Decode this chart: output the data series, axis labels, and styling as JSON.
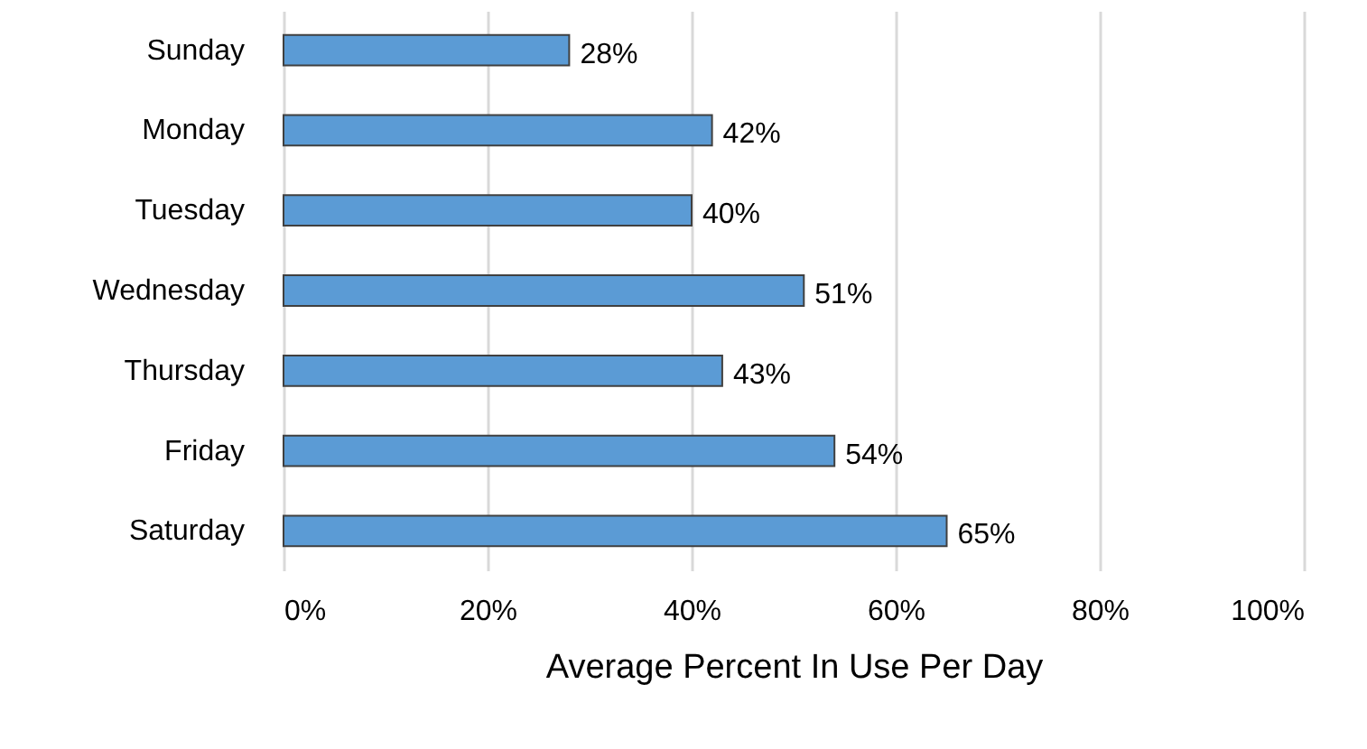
{
  "chart_data": {
    "type": "bar",
    "orientation": "horizontal",
    "categories": [
      "Sunday",
      "Monday",
      "Tuesday",
      "Wednesday",
      "Thursday",
      "Friday",
      "Saturday"
    ],
    "values": [
      28,
      42,
      40,
      51,
      43,
      54,
      65
    ],
    "value_labels": [
      "28%",
      "42%",
      "40%",
      "51%",
      "43%",
      "54%",
      "65%"
    ],
    "color": "#5b9bd5",
    "xlabel": "Average Percent In Use Per Day",
    "xlim": [
      0,
      100
    ],
    "xticks": [
      {
        "value": 0,
        "label": "0%"
      },
      {
        "value": 20,
        "label": "20%"
      },
      {
        "value": 40,
        "label": "40%"
      },
      {
        "value": 60,
        "label": "60%"
      },
      {
        "value": 80,
        "label": "80%"
      },
      {
        "value": 100,
        "label": "100%"
      }
    ],
    "grid": "x"
  }
}
